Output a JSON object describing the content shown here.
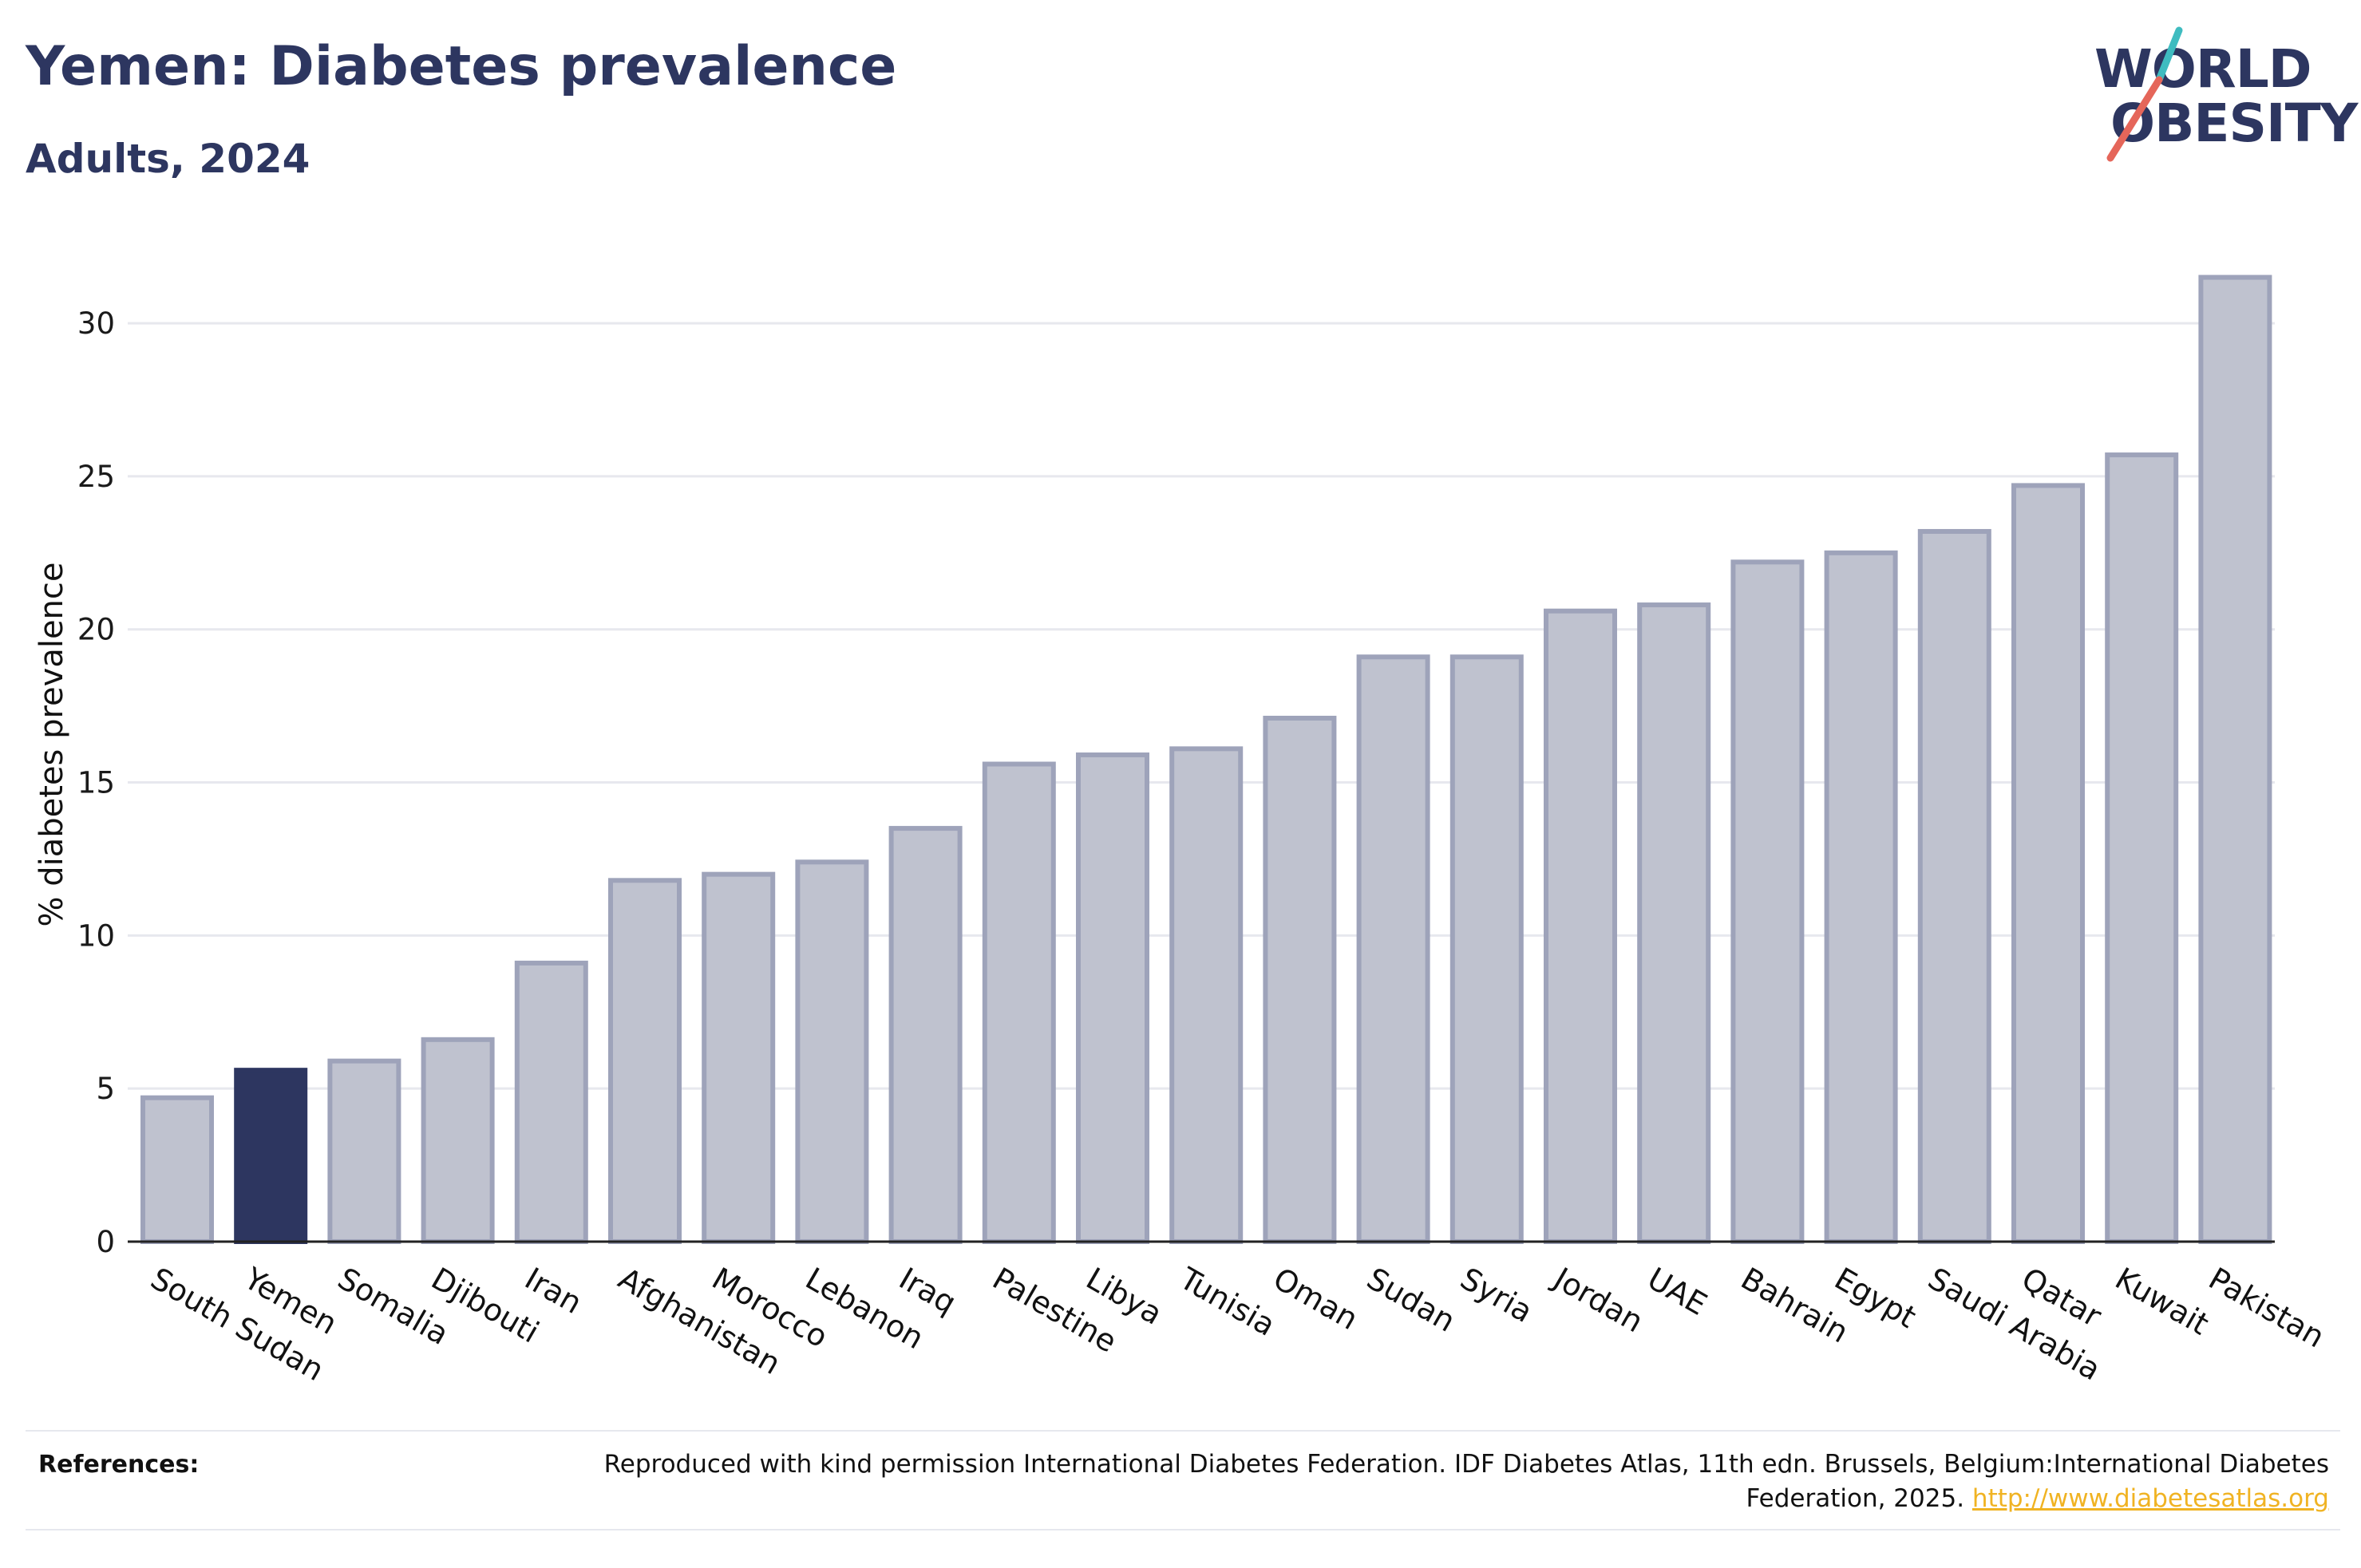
{
  "header": {
    "title": "Yemen: Diabetes prevalence",
    "subtitle": "Adults, 2024"
  },
  "logo": {
    "line1": "WORLD",
    "line2": "OBESITY",
    "accent_teal": "#3fbcc0",
    "accent_red": "#e5665a"
  },
  "colors": {
    "bar": "#bfc2cf",
    "bar_edge": "#9ea3ba",
    "highlight": "#2d3660",
    "text": "#2d3660",
    "link": "#f0b323"
  },
  "chart_data": {
    "type": "bar",
    "ylabel": "% diabetes prevalence",
    "ylim": [
      0,
      33
    ],
    "yticks": [
      0,
      5,
      10,
      15,
      20,
      25,
      30
    ],
    "grid": true,
    "highlight": "Yemen",
    "categories": [
      "South Sudan",
      "Yemen",
      "Somalia",
      "Djibouti",
      "Iran",
      "Afghanistan",
      "Morocco",
      "Lebanon",
      "Iraq",
      "Palestine",
      "Libya",
      "Tunisia",
      "Oman",
      "Sudan",
      "Syria",
      "Jordan",
      "UAE",
      "Bahrain",
      "Egypt",
      "Saudi Arabia",
      "Qatar",
      "Kuwait",
      "Pakistan"
    ],
    "values": [
      4.7,
      5.6,
      5.9,
      6.6,
      9.1,
      11.8,
      12.0,
      12.4,
      13.5,
      15.6,
      15.9,
      16.1,
      17.1,
      19.1,
      19.1,
      20.6,
      20.8,
      22.2,
      22.5,
      23.2,
      24.7,
      25.7,
      31.5
    ]
  },
  "footer": {
    "references_label": "References:",
    "reference_text": "Reproduced with kind permission International Diabetes Federation. IDF Diabetes Atlas, 11th edn. Brussels, Belgium:International Diabetes Federation, 2025.",
    "reference_link": "http://www.diabetesatlas.org"
  }
}
